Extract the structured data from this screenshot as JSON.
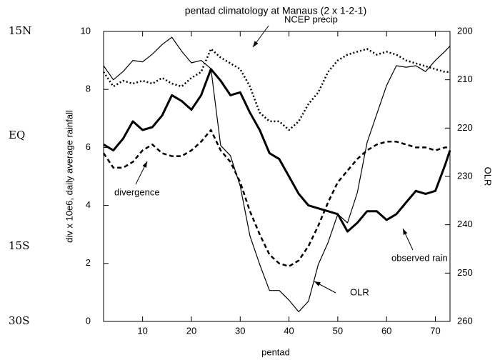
{
  "chart_data": {
    "type": "line",
    "title": "pentad climatology at Manaus (2 x 1-2-1)",
    "xlabel": "pentad",
    "ylabel": "div x 10e6, daily average rainfall",
    "y2label": "OLR",
    "side_labels": [
      "15N",
      "EQ",
      "15S",
      "30S"
    ],
    "x": [
      2,
      4,
      6,
      8,
      10,
      12,
      14,
      16,
      18,
      20,
      22,
      24,
      26,
      28,
      30,
      32,
      34,
      36,
      38,
      40,
      42,
      44,
      46,
      48,
      50,
      52,
      54,
      56,
      58,
      60,
      62,
      64,
      66,
      68,
      70,
      72,
      73
    ],
    "xlim": [
      2,
      73
    ],
    "xticks": [
      10,
      20,
      30,
      40,
      50,
      60,
      70
    ],
    "ylim": [
      0,
      10
    ],
    "yticks": [
      0,
      2,
      4,
      6,
      8,
      10
    ],
    "y2lim": [
      260,
      200
    ],
    "y2ticks": [
      200,
      210,
      220,
      230,
      240,
      250,
      260
    ],
    "grid": false,
    "series": [
      {
        "name": "observed rain",
        "color": "#000000",
        "width": 3,
        "dash": "none",
        "values": [
          6.1,
          5.9,
          6.3,
          6.9,
          6.6,
          6.7,
          7.1,
          7.8,
          7.6,
          7.3,
          7.8,
          8.7,
          8.3,
          7.8,
          7.9,
          7.2,
          6.6,
          5.8,
          5.6,
          5.0,
          4.4,
          4.0,
          3.9,
          3.8,
          3.7,
          3.1,
          3.4,
          3.8,
          3.8,
          3.5,
          3.7,
          4.1,
          4.5,
          4.4,
          4.5,
          5.4,
          5.9
        ]
      },
      {
        "name": "NCEP precip",
        "color": "#000000",
        "width": 2.5,
        "dash": "2,3",
        "values": [
          8.6,
          8.1,
          8.3,
          8.2,
          8.3,
          8.2,
          8.4,
          8.2,
          8.1,
          8.4,
          8.6,
          9.4,
          9.1,
          8.9,
          8.7,
          8.1,
          7.2,
          6.9,
          6.9,
          6.6,
          6.9,
          7.5,
          7.9,
          8.6,
          9.0,
          9.2,
          9.3,
          9.4,
          9.2,
          9.3,
          9.2,
          9.0,
          8.9,
          8.8,
          8.7,
          8.6,
          8.6
        ]
      },
      {
        "name": "divergence",
        "color": "#000000",
        "width": 2.5,
        "dash": "6,4",
        "values": [
          5.8,
          5.3,
          5.3,
          5.5,
          5.9,
          6.1,
          5.8,
          5.7,
          5.7,
          5.9,
          6.2,
          6.6,
          5.9,
          5.5,
          4.8,
          3.8,
          3.0,
          2.3,
          2.0,
          1.9,
          2.1,
          2.6,
          3.3,
          4.1,
          4.8,
          5.2,
          5.6,
          5.9,
          6.1,
          6.2,
          6.2,
          6.1,
          6.0,
          6.0,
          5.9,
          6.0,
          6.0
        ]
      },
      {
        "name": "OLR",
        "color": "#000000",
        "width": 1.2,
        "dash": "none",
        "axis": "y2",
        "values": [
          207.1,
          210.0,
          208.3,
          206.0,
          206.3,
          204.7,
          202.7,
          201.2,
          204.1,
          206.5,
          206.0,
          207.7,
          223.6,
          225.7,
          232.0,
          242.3,
          248.2,
          253.6,
          253.6,
          255.6,
          258.0,
          255.8,
          248.2,
          243.7,
          237.8,
          239.6,
          233.4,
          223.0,
          217.1,
          211.2,
          207.1,
          207.4,
          207.1,
          208.3,
          206.0,
          204.1,
          203.0
        ]
      }
    ]
  }
}
